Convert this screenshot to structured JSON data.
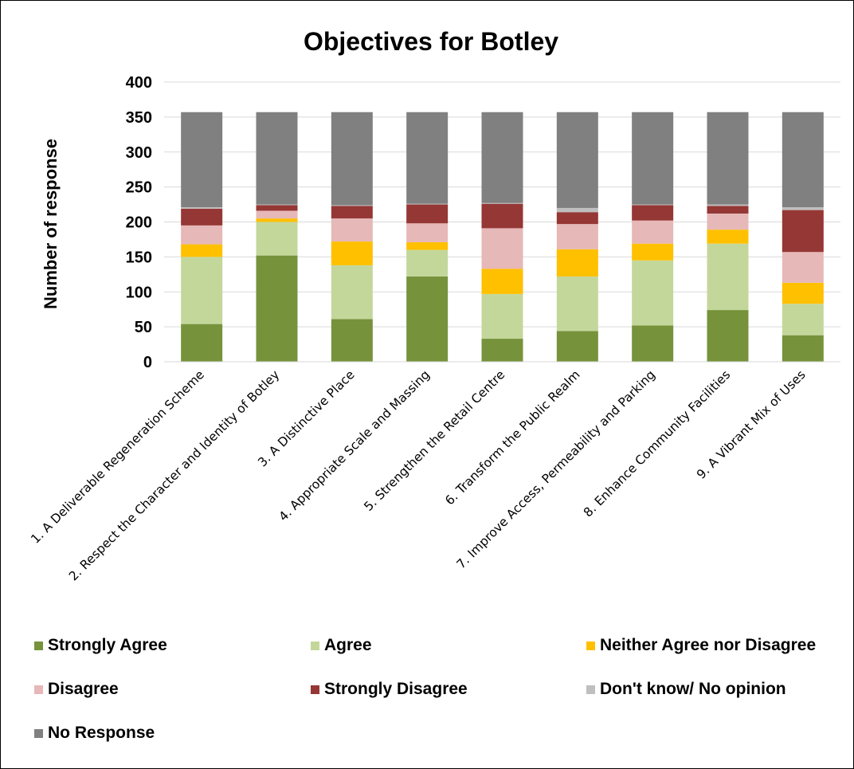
{
  "chart_data": {
    "type": "bar",
    "stacked": true,
    "title": "Objectives for Botley",
    "ylabel": "Number of response",
    "xlabel": "",
    "ylim": [
      0,
      400
    ],
    "yticks": [
      0,
      50,
      100,
      150,
      200,
      250,
      300,
      350,
      400
    ],
    "grid": true,
    "legend_position": "bottom",
    "categories": [
      "1. A Deliverable Regeneration Scheme",
      "2. Respect the Character and Identity of Botley",
      "3. A Distinctive Place",
      "4. Appropriate Scale and Massing",
      "5. Strengthen the Retail Centre",
      "6. Transform the Public Realm",
      "7. Improve Access, Permeability and Parking",
      "8. Enhance Community Facilities",
      "9. A Vibrant Mix of Uses"
    ],
    "series": [
      {
        "name": "Strongly Agree",
        "color": "#76933C",
        "values": [
          54,
          152,
          61,
          122,
          33,
          44,
          52,
          74,
          38
        ]
      },
      {
        "name": "Agree",
        "color": "#C4D79B",
        "values": [
          96,
          48,
          77,
          38,
          64,
          78,
          93,
          95,
          45
        ]
      },
      {
        "name": "Neither Agree nor Disagree",
        "color": "#FFC000",
        "values": [
          18,
          5,
          34,
          11,
          36,
          39,
          24,
          20,
          30
        ]
      },
      {
        "name": "Disagree",
        "color": "#E6B8B7",
        "values": [
          27,
          11,
          33,
          27,
          58,
          36,
          33,
          23,
          44
        ]
      },
      {
        "name": "Strongly Disagree",
        "color": "#953735",
        "values": [
          24,
          8,
          18,
          27,
          35,
          17,
          22,
          11,
          60
        ]
      },
      {
        "name": "Don't know/ No opinion",
        "color": "#BFBFBF",
        "values": [
          2,
          1,
          1,
          1,
          1,
          6,
          1,
          2,
          4
        ]
      },
      {
        "name": "No Response",
        "color": "#808080",
        "values": [
          136,
          132,
          133,
          131,
          130,
          137,
          132,
          132,
          136
        ]
      }
    ]
  }
}
